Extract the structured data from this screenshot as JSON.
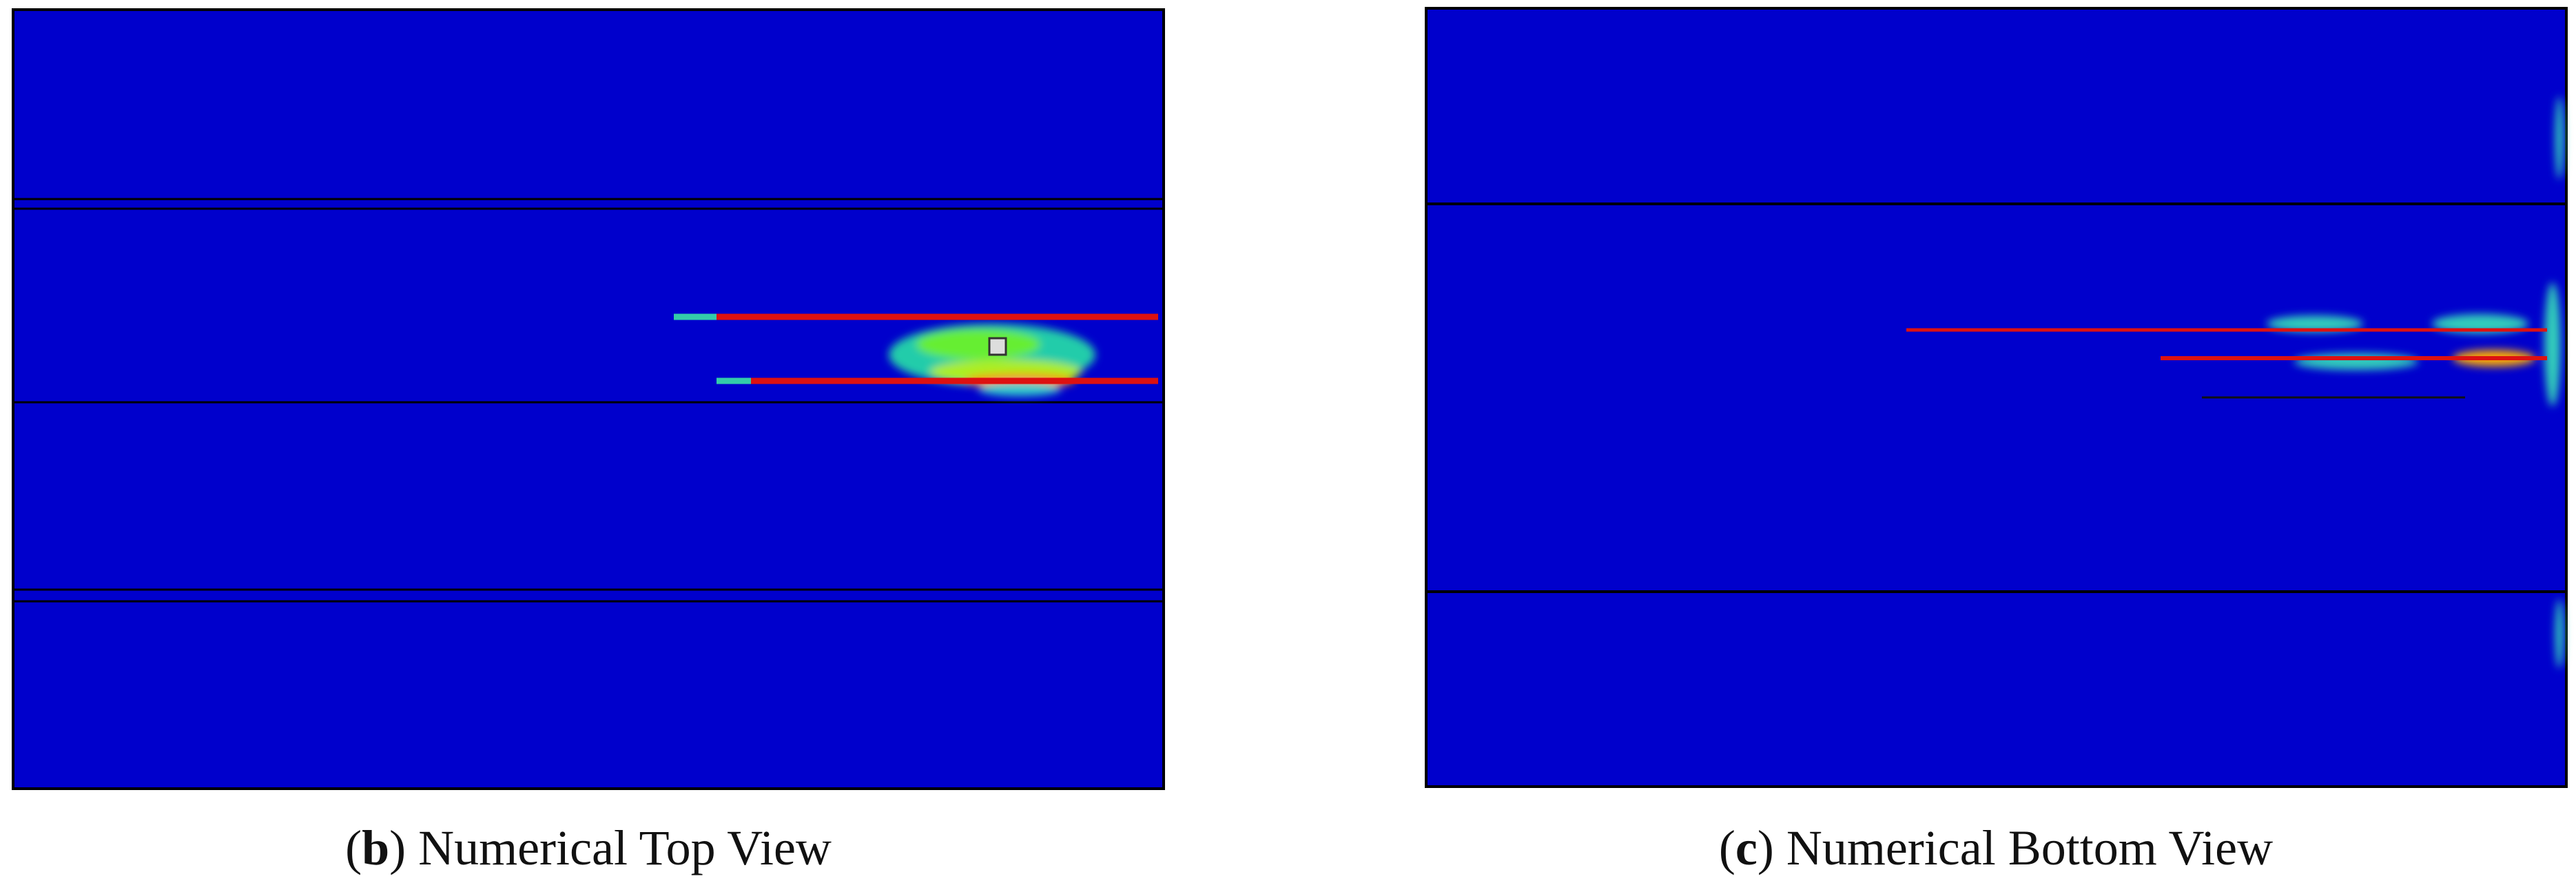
{
  "panels": [
    {
      "prefix": "(",
      "letter": "b",
      "text": ") Numerical Top View"
    },
    {
      "prefix": "(",
      "letter": "c",
      "text": ") Numerical Bottom View"
    }
  ]
}
